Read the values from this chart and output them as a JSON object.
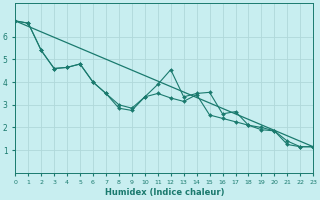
{
  "xlabel": "Humidex (Indice chaleur)",
  "ylabel": "",
  "background_color": "#c8eef0",
  "grid_color": "#b0d8da",
  "line_color": "#1a7a6e",
  "x_values": [
    0,
    1,
    2,
    3,
    4,
    5,
    6,
    7,
    8,
    9,
    10,
    11,
    12,
    13,
    14,
    15,
    16,
    17,
    18,
    19,
    20,
    21,
    22,
    23
  ],
  "line1_y": [
    6.7,
    6.6,
    5.4,
    4.6,
    4.65,
    4.8,
    4.0,
    3.5,
    3.0,
    2.85,
    3.35,
    3.9,
    4.55,
    3.35,
    3.5,
    3.55,
    2.6,
    2.7,
    2.1,
    1.9,
    1.85,
    1.25,
    1.15,
    1.15
  ],
  "line2_y": [
    6.7,
    6.6,
    5.4,
    4.6,
    4.65,
    4.8,
    4.0,
    3.5,
    2.85,
    2.75,
    3.35,
    3.5,
    3.3,
    3.15,
    3.45,
    2.55,
    2.4,
    2.25,
    2.1,
    2.0,
    1.85,
    1.4,
    1.15,
    1.15
  ],
  "trend_x": [
    0,
    23
  ],
  "trend_y": [
    6.7,
    1.15
  ],
  "ylim": [
    0,
    7.5
  ],
  "xlim": [
    0,
    23
  ],
  "yticks": [
    1,
    2,
    3,
    4,
    5,
    6
  ],
  "xticks": [
    0,
    1,
    2,
    3,
    4,
    5,
    6,
    7,
    8,
    9,
    10,
    11,
    12,
    13,
    14,
    15,
    16,
    17,
    18,
    19,
    20,
    21,
    22,
    23
  ],
  "xlabel_fontsize": 6,
  "tick_fontsize_x": 4.5,
  "tick_fontsize_y": 5.5
}
